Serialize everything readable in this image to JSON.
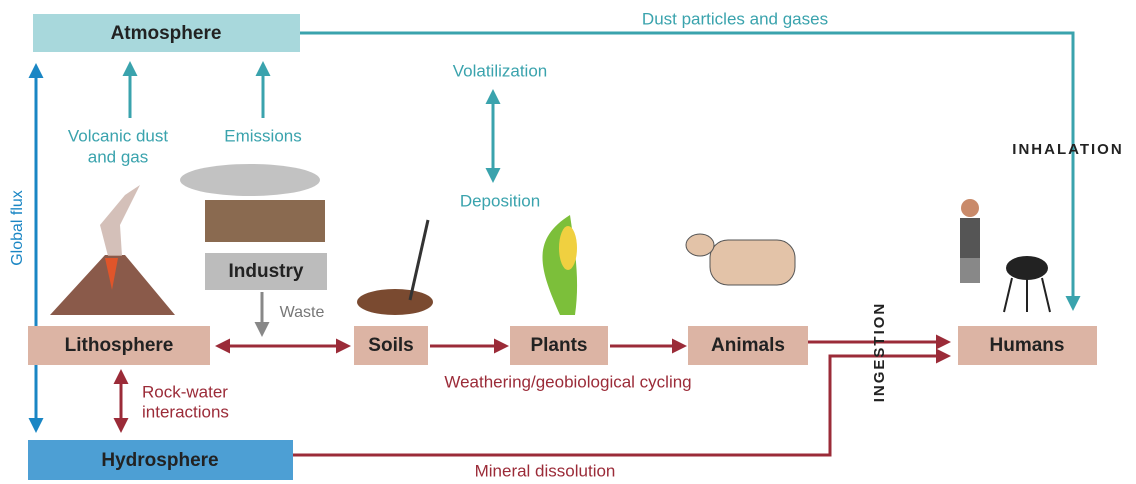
{
  "nodes": [
    {
      "label": "Atmosphere"
    },
    {
      "label": "Industry"
    },
    {
      "label": "Lithosphere"
    },
    {
      "label": "Soils"
    },
    {
      "label": "Plants"
    },
    {
      "label": "Animals"
    },
    {
      "label": "Humans"
    },
    {
      "label": "Hydrosphere"
    }
  ],
  "labels": {
    "dust": "Dust particles and gases",
    "volatilization": "Volatilization",
    "deposition": "Deposition",
    "volcanic": [
      "Volcanic dust",
      "and gas"
    ],
    "emissions": "Emissions",
    "waste": "Waste",
    "global_flux": "Global flux",
    "rock_water": [
      "Rock-water",
      "interactions"
    ],
    "weathering": "Weathering/geobiological cycling",
    "mineral": "Mineral dissolution",
    "inhalation": "INHALATION",
    "ingestion": "INGESTION"
  }
}
